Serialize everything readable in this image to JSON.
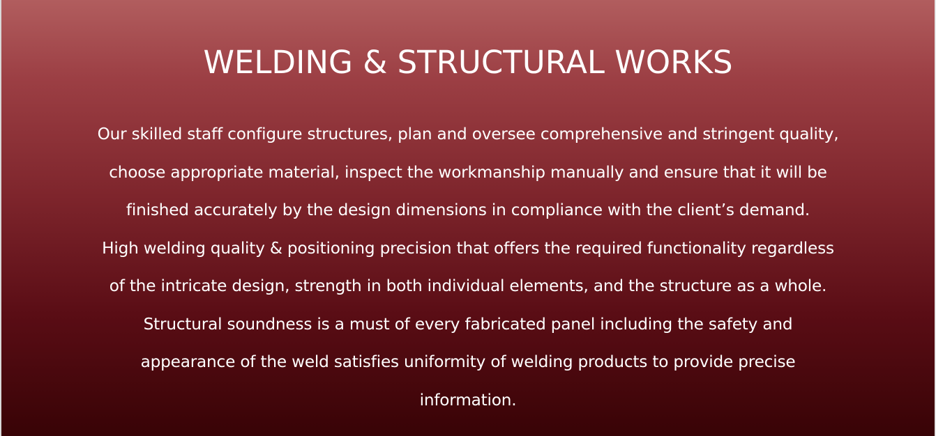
{
  "section": {
    "title": "WELDING & STRUCTURAL WORKS",
    "lines": [
      "Our skilled staff configure structures, plan and oversee comprehensive and stringent quality,",
      "choose appropriate material, inspect the workmanship manually and ensure that it will be",
      "finished accurately by the design dimensions in compliance with the client’s demand.",
      "High welding quality & positioning precision that offers the required functionality regardless",
      "of the intricate design, strength in both individual elements, and the structure as a whole.",
      "Structural soundness is a must of every fabricated panel including the safety and",
      "appearance of the weld satisfies uniformity of welding products to provide precise",
      "information."
    ]
  },
  "colors": {
    "gradient_top": "#b15d5e",
    "gradient_bottom": "#380306",
    "text": "#ffffff"
  }
}
